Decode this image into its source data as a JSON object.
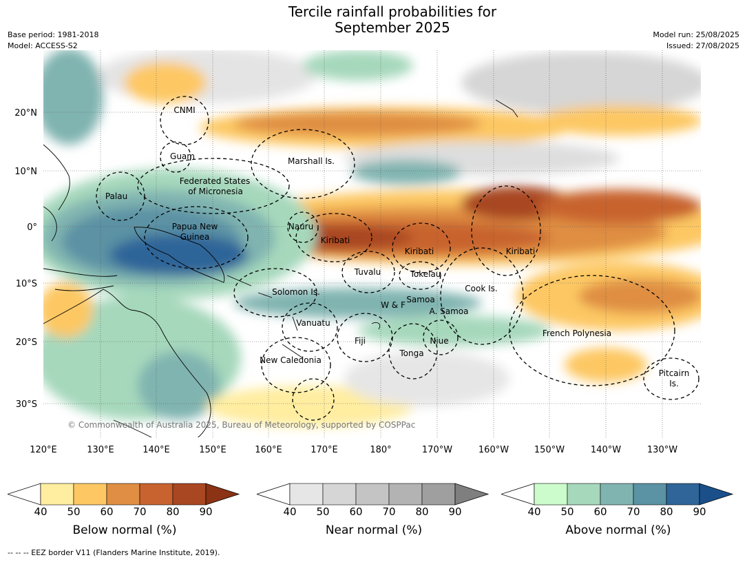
{
  "title_line1": "Tercile rainfall probabilities for",
  "title_line2": "September 2025",
  "base_period": "Base period: 1981-2018",
  "model": "Model: ACCESS-S2",
  "model_run": "Model run: 25/08/2025",
  "issued": "Issued: 27/08/2025",
  "copyright": "© Commonwealth of Australia 2025, Bureau of Meteorology, supported by COSPPac",
  "lat_labels": [
    "20°N",
    "10°N",
    "0°",
    "10°S",
    "20°S",
    "30°S"
  ],
  "lon_labels": [
    "120°E",
    "130°E",
    "140°E",
    "150°E",
    "160°E",
    "170°E",
    "180°",
    "170°W",
    "160°W",
    "150°W",
    "140°W",
    "130°W"
  ],
  "regions": [
    {
      "name": "CNMI"
    },
    {
      "name": "Guam"
    },
    {
      "name": "Marshall Is."
    },
    {
      "name": "Federated States"
    },
    {
      "name": "of Micronesia"
    },
    {
      "name": "Palau"
    },
    {
      "name": "Papua New"
    },
    {
      "name": "Guinea"
    },
    {
      "name": "Nauru"
    },
    {
      "name": "Kiribati"
    },
    {
      "name": "Kiribati"
    },
    {
      "name": "Kiribati"
    },
    {
      "name": "Tuvalu"
    },
    {
      "name": "Tokelau"
    },
    {
      "name": "Cook Is."
    },
    {
      "name": "Solomon Is."
    },
    {
      "name": "Samoa"
    },
    {
      "name": "W & F"
    },
    {
      "name": "A. Samoa"
    },
    {
      "name": "Vanuatu"
    },
    {
      "name": "Fiji"
    },
    {
      "name": "Niue"
    },
    {
      "name": "Tonga"
    },
    {
      "name": "French Polynesia"
    },
    {
      "name": "New Caledonia"
    },
    {
      "name": "Pitcairn"
    },
    {
      "name": "Is."
    }
  ],
  "colorbars": [
    {
      "label": "Below normal (%)",
      "ticks": [
        "40",
        "50",
        "60",
        "70",
        "80",
        "90"
      ],
      "colors": [
        "#ffeda0",
        "#fdc863",
        "#df8e43",
        "#c8632f",
        "#a84722"
      ],
      "arrow": "#8c3215"
    },
    {
      "label": "Near normal (%)",
      "ticks": [
        "40",
        "50",
        "60",
        "70",
        "80",
        "90"
      ],
      "colors": [
        "#e6e6e6",
        "#d6d6d6",
        "#c4c4c4",
        "#b3b3b3",
        "#9f9f9f"
      ],
      "arrow": "#7f7f7f"
    },
    {
      "label": "Above normal (%)",
      "ticks": [
        "40",
        "50",
        "60",
        "70",
        "80",
        "90"
      ],
      "colors": [
        "#ccfccc",
        "#a6d8bc",
        "#80b4b0",
        "#5b92a4",
        "#2f6599"
      ],
      "arrow": "#1a4f8a"
    }
  ],
  "footer": "--  --  -- EEZ border V11 (Flanders Marine Institute, 2019)."
}
